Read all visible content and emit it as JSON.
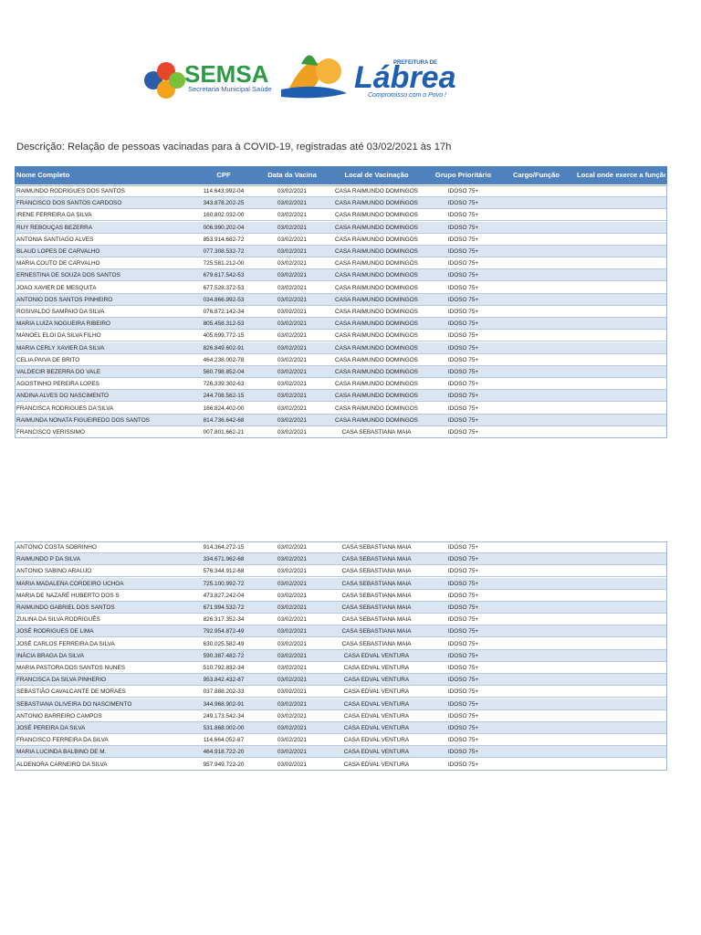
{
  "header": {
    "brand": "SEMSA",
    "brand_subtitle": "Secretaria Municipal Saúde",
    "city_prefix": "PREFEITURA DE",
    "city": "Lábrea",
    "slogan": "Compromisso com o Povo !"
  },
  "description": "Descrição: Relação de pessoas vacinadas para à COVID-19, registradas até 03/02/2021 às 17h",
  "table": {
    "columns": [
      "Nome Completo",
      "CPF",
      "Data da Vacina",
      "Local de Vacinação",
      "Grupo Prioritário",
      "Cargo/Função",
      "Local onde exerce a função"
    ],
    "rows": [
      [
        "RAIMUNDO RODRIGUES DOS SANTOS",
        "114.643.992-04",
        "03/02/2021",
        "CASA RAIMUNDO DOMINGOS",
        "IDOSO 75+"
      ],
      [
        "FRANCISCO DOS SANTOS CARDOSO",
        "343.878.202-25",
        "03/02/2021",
        "CASA RAIMUNDO DOMINGOS",
        "IDOSO 75+"
      ],
      [
        "IRENE FERREIRA DA SILVA",
        "160.802.032-00",
        "03/02/2021",
        "CASA RAIMUNDO DOMINGOS",
        "IDOSO 75+"
      ],
      [
        "RUY REBOUÇAS BEZERRA",
        "006.990.202-04",
        "03/02/2021",
        "CASA RAIMUNDO DOMINGOS",
        "IDOSO 75+"
      ],
      [
        "ANTONIA SANTIAGO ALVES",
        "853.914.682-72",
        "03/02/2021",
        "CASA RAIMUNDO DOMINGOS",
        "IDOSO 75+"
      ],
      [
        "BLAUD LOPES DE CARVALHO",
        "077.308.532-72",
        "03/02/2021",
        "CASA RAIMUNDO DOMINGOS",
        "IDOSO 75+"
      ],
      [
        "MARIA COUTO DE CARVALHO",
        "725.581.212-00",
        "03/02/2021",
        "CASA RAIMUNDO DOMINGOS",
        "IDOSO 75+"
      ],
      [
        "ERNESTINA DE SOUZA DOS SANTOS",
        "679.617.542-53",
        "03/02/2021",
        "CASA RAIMUNDO DOMINGOS",
        "IDOSO 75+"
      ],
      [
        "JOAO XAVIER DE MESQUITA",
        "677.528.372-53",
        "03/02/2021",
        "CASA RAIMUNDO DOMINGOS",
        "IDOSO 75+"
      ],
      [
        "ANTONIO DOS SANTOS PINHEIRO",
        "034.866.992-53",
        "03/02/2021",
        "CASA RAIMUNDO DOMINGOS",
        "IDOSO 75+"
      ],
      [
        "ROSIVALDO SAMPAIO DA SILVA",
        "076.872.142-34",
        "03/02/2021",
        "CASA RAIMUNDO DOMINGOS",
        "IDOSO 75+"
      ],
      [
        "MARIA LUIZA NOGUEIRA RIBEIRO",
        "805.458.312-53",
        "03/02/2021",
        "CASA RAIMUNDO DOMINGOS",
        "IDOSO 75+"
      ],
      [
        "MANOEL ELOI DA SILVA FILHO",
        "405.699.772-15",
        "03/02/2021",
        "CASA RAIMUNDO DOMINGOS",
        "IDOSO 75+"
      ],
      [
        "MARIA CERLY XAVIER DA SILVA",
        "826.849.602-91",
        "03/02/2021",
        "CASA RAIMUNDO DOMINGOS",
        "IDOSO 75+"
      ],
      [
        "CELIA PAIVA DE BRITO",
        "464.238.002-78",
        "03/02/2021",
        "CASA RAIMUNDO DOMINGOS",
        "IDOSO 75+"
      ],
      [
        "VALDECIR BEZERRA DO VALE",
        "560.798.852-04",
        "03/02/2021",
        "CASA RAIMUNDO DOMINGOS",
        "IDOSO 75+"
      ],
      [
        "AGOSTINHO PEREIRA LOPES",
        "726.339.302-63",
        "03/02/2021",
        "CASA RAIMUNDO DOMINGOS",
        "IDOSO 75+"
      ],
      [
        "ANDINA ALVES DO NASCIMENTO",
        "244.708.562-15",
        "03/02/2021",
        "CASA RAIMUNDO DOMINGOS",
        "IDOSO 75+"
      ],
      [
        "FRANCISCA RODRIGUES DA SILVA",
        "166.824.402-00",
        "03/02/2021",
        "CASA RAIMUNDO DOMINGOS",
        "IDOSO 75+"
      ],
      [
        "RAIMUNDA NONATA FIGUEIREDO DOS SANTOS",
        "814.736.642-68",
        "03/02/2021",
        "CASA RAIMUNDO DOMINGOS",
        "IDOSO 75+"
      ],
      [
        "FRANCISCO VERISSIMO",
        "007.801.662-21",
        "03/02/2021",
        "CASA SEBASTIANA MAIA",
        "IDOSO 75+"
      ]
    ]
  },
  "table2": {
    "rows": [
      [
        "ANTONIO COSTA SOBRINHO",
        "914.364.272-15",
        "03/02/2021",
        "CASA SEBASTIANA MAIA",
        "IDOSO 75+"
      ],
      [
        "RAIMUNDO P  DA SILVA",
        "334.671.962-68",
        "03/02/2021",
        "CASA SEBASTIANA MAIA",
        "IDOSO 75+"
      ],
      [
        "ANTONIO SABINO ARAUJO",
        "576.344.912-68",
        "03/02/2021",
        "CASA SEBASTIANA MAIA",
        "IDOSO 75+"
      ],
      [
        "MARIA MADALENA CORDEIRO UCHOA",
        "725.100.992-72",
        "03/02/2021",
        "CASA SEBASTIANA MAIA",
        "IDOSO 75+"
      ],
      [
        "MARIA DE NAZARÉ HUBERTO DOS S",
        "473.827.242-04",
        "03/02/2021",
        "CASA SEBASTIANA MAIA",
        "IDOSO 75+"
      ],
      [
        "RAIMUNDO GABRIEL DOS SANTOS",
        "671.994.532-72",
        "03/02/2021",
        "CASA SEBASTIANA MAIA",
        "IDOSO 75+"
      ],
      [
        "ZULINA DA SILVA RODRIGUÊS",
        "826.317.352-34",
        "03/02/2021",
        "CASA SEBASTIANA MAIA",
        "IDOSO 75+"
      ],
      [
        "JOSÉ RODRIGUES DE LIMA",
        "792.954.872-49",
        "03/02/2021",
        "CASA SEBASTIANA MAIA",
        "IDOSO 75+"
      ],
      [
        "JOSÉ CARLOS FERREIRA DA SILVA",
        "630.025.582-49",
        "03/02/2021",
        "CASA SEBASTIANA MAIA",
        "IDOSO 75+"
      ],
      [
        "INÁCIA BRAGA DA SILVA",
        "590.387.482-72",
        "03/02/2021",
        "CASA EDVAL VENTURA",
        "IDOSO 75+"
      ],
      [
        "MARIA PASTORA DOS SANTOS NUNES",
        "510.792.832-34",
        "03/02/2021",
        "CASA EDVAL VENTURA",
        "IDOSO 75+"
      ],
      [
        "FRANCISCA DA SILVA PINHERIO",
        "953.842.432-87",
        "03/02/2021",
        "CASA EDVAL VENTURA",
        "IDOSO 75+"
      ],
      [
        "SEBASTIÃO CAVALCANTE DE MORAES",
        "037.888.202-33",
        "03/02/2021",
        "CASA EDVAL VENTURA",
        "IDOSO 75+"
      ],
      [
        "SEBASTIANA OLIVEIRA DO NASCIMENTO",
        "344.968.902-91",
        "03/02/2021",
        "CASA EDVAL VENTURA",
        "IDOSO 75+"
      ],
      [
        "ANTONIO BARREIRO CAMPOS",
        "249.173.542-34",
        "03/02/2021",
        "CASA EDVAL VENTURA",
        "IDOSO 75+"
      ],
      [
        "JOSÉ PEREIRA DA SILVA",
        "531.868.002-00",
        "03/02/2021",
        "CASA EDVAL VENTURA",
        "IDOSO 75+"
      ],
      [
        "FRANCISCO FERREIRA DA SILVA",
        "114.664.052-87",
        "03/02/2021",
        "CASA EDVAL VENTURA",
        "IDOSO 75+"
      ],
      [
        "MARIA LUCINDA BALBINO DE M.",
        "464.918.722-20",
        "03/02/2021",
        "CASA EDVAL VENTURA",
        "IDOSO 75+"
      ],
      [
        "ALDENORA CARNEIRO DA SILVA",
        "957.949.722-20",
        "03/02/2021",
        "CASA EDVAL VENTURA",
        "IDOSO 75+"
      ]
    ]
  }
}
